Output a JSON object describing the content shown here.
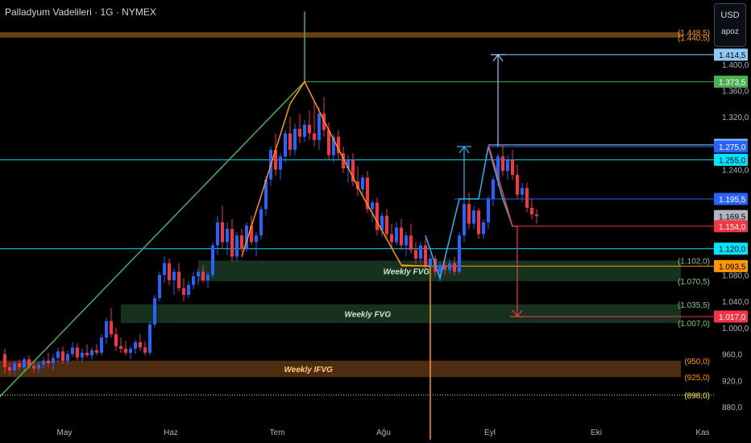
{
  "title": "Palladyum Vadelileri · 1G · NYMEX",
  "currency_selector": {
    "currency": "USD",
    "unit": "apoz"
  },
  "colors": {
    "background": "#000000",
    "up": "#2962ff",
    "down": "#f23645",
    "green_line": "#4caf50",
    "orange": "#ff9800",
    "cyan": "#00e5ff",
    "light_blue": "#90caf9",
    "yellow": "#ffeb3b",
    "fvg_fill": "#1b3a24",
    "ifvg_fill": "#5a3412",
    "axis_text": "#b2b5be"
  },
  "chart_data": {
    "type": "candlestick",
    "x_axis": {
      "labels": [
        "May",
        "Haz",
        "Tem",
        "Ağu",
        "Eyl",
        "Eki",
        "Kas"
      ],
      "bar_index": [
        4,
        26,
        48,
        70,
        92,
        114,
        136
      ]
    },
    "y_axis": {
      "range": [
        865,
        1480
      ],
      "tick_labels": [
        "1.400,0",
        "1.360,0",
        "1.320,0",
        "1.240,0",
        "1.080,0",
        "1.040,0",
        "1.000,0",
        "960,0",
        "920,0",
        "880,0"
      ],
      "tick_values": [
        1400,
        1360,
        1320,
        1240,
        1080,
        1040,
        1000,
        960,
        920,
        880
      ]
    },
    "price_tags": [
      {
        "value": 1414.5,
        "text": "1.414,5",
        "bg": "#90caf9",
        "fg": "#000000"
      },
      {
        "value": 1373.5,
        "text": "1.373,5",
        "bg": "#4caf50",
        "fg": "#ffffff"
      },
      {
        "value": 1277.5,
        "text": "1.277,5",
        "bg": "#90caf9",
        "fg": "#000000"
      },
      {
        "value": 1275.0,
        "text": "1.275,0",
        "bg": "#2962ff",
        "fg": "#ffffff"
      },
      {
        "value": 1255.0,
        "text": "1.255,0",
        "bg": "#00e5ff",
        "fg": "#000000"
      },
      {
        "value": 1195.5,
        "text": "1.195,5",
        "bg": "#2962ff",
        "fg": "#ffffff"
      },
      {
        "value": 1169.5,
        "text": "1.169,5",
        "bg": "#b2b5be",
        "fg": "#000000"
      },
      {
        "value": 1154.0,
        "text": "1.154,0",
        "bg": "#f23645",
        "fg": "#ffffff"
      },
      {
        "value": 1120.0,
        "text": "1.120,0",
        "bg": "#00e5ff",
        "fg": "#000000"
      },
      {
        "value": 1093.5,
        "text": "1.093,5",
        "bg": "#ff9800",
        "fg": "#000000"
      },
      {
        "value": 1017.0,
        "text": "1.017,0",
        "bg": "#f23645",
        "fg": "#ffffff"
      }
    ],
    "level_labels": [
      {
        "value": 1448.5,
        "text": "(1.448,5)",
        "color": "#ff9800"
      },
      {
        "value": 1440.5,
        "text": "(1.440,5)",
        "color": "#ff9800"
      },
      {
        "value": 1102.0,
        "text": "(1.102,0)",
        "color": "#81c784"
      },
      {
        "value": 1070.5,
        "text": "(1.070,5)",
        "color": "#81c784"
      },
      {
        "value": 1035.5,
        "text": "(1.035,5)",
        "color": "#81c784"
      },
      {
        "value": 1007.0,
        "text": "(1.007,0)",
        "color": "#81c784"
      },
      {
        "value": 950.0,
        "text": "(950,0)",
        "color": "#ff9800"
      },
      {
        "value": 925.0,
        "text": "(925,0)",
        "color": "#ff9800"
      },
      {
        "value": 898.0,
        "text": "(898,0)",
        "color": "#ffeb3b"
      }
    ],
    "zones": [
      {
        "label": "",
        "top": 1448.5,
        "bottom": 1440.5,
        "x_start": -2,
        "fill": "#7a4a1a",
        "label_color": ""
      },
      {
        "label": "Weekly FVG",
        "top": 1102.0,
        "bottom": 1070.5,
        "x_start": 40,
        "fill": "#1b3a24",
        "label_color": "#c8e6c9"
      },
      {
        "label": "Weekly FVG",
        "top": 1035.5,
        "bottom": 1007.0,
        "x_start": 24,
        "fill": "#1b3a24",
        "label_color": "#c8e6c9"
      },
      {
        "label": "Weekly IFVG",
        "top": 950.0,
        "bottom": 925.0,
        "x_start": -2,
        "fill": "#5a3412",
        "label_color": "#ffcc80"
      }
    ],
    "horizontal_lines": [
      {
        "value": 1255.0,
        "x_start": -2,
        "color": "#00e5ff"
      },
      {
        "value": 1120.0,
        "x_start": -2,
        "color": "#00e5ff"
      },
      {
        "value": 1373.5,
        "x_start": 62,
        "color": "#4caf50"
      },
      {
        "value": 1414.5,
        "x_start": 101,
        "color": "#90caf9"
      },
      {
        "value": 1277.5,
        "x_start": 100,
        "color": "#90caf9"
      },
      {
        "value": 1275.0,
        "x_start": 100,
        "color": "#2962ff"
      },
      {
        "value": 1195.5,
        "x_start": 93,
        "color": "#2962ff"
      },
      {
        "value": 1154.0,
        "x_start": 105,
        "color": "#f23645"
      },
      {
        "value": 1017.0,
        "x_start": 106,
        "color": "#f23645"
      },
      {
        "value": 1093.5,
        "x_start": 82,
        "color": "#ff9800"
      },
      {
        "value": 898.0,
        "x_start": -2,
        "color": "#ffeb3b",
        "dotted": true
      }
    ],
    "polylines": [
      {
        "color": "#4caf50",
        "points": [
          [
            -2,
            888
          ],
          [
            62,
            1373.5
          ]
        ]
      },
      {
        "color": "#4caf50",
        "points": [
          [
            62,
            1480
          ],
          [
            62,
            1373.5
          ]
        ]
      },
      {
        "color": "#ff9800",
        "points": [
          [
            49,
            1108
          ],
          [
            53,
            1200
          ],
          [
            59,
            1340
          ],
          [
            62,
            1373.5
          ],
          [
            67,
            1300
          ],
          [
            74,
            1200
          ],
          [
            82,
            1095
          ],
          [
            88,
            1093.5
          ]
        ]
      },
      {
        "color": "#ff9800",
        "points": [
          [
            88,
            1093.5
          ],
          [
            88,
            830
          ]
        ]
      },
      {
        "color": "#29b6f6",
        "points": [
          [
            87,
            1140
          ],
          [
            90,
            1075
          ],
          [
            94,
            1195.5
          ],
          [
            98,
            1195.5
          ],
          [
            100,
            1275
          ],
          [
            103,
            1195.5
          ],
          [
            105,
            1154
          ]
        ]
      },
      {
        "color": "#f23645",
        "points": [
          [
            100,
            1277.5
          ],
          [
            102,
            1230
          ],
          [
            105,
            1154
          ],
          [
            106,
            1154
          ]
        ]
      }
    ],
    "arrows": [
      {
        "color": "#29b6f6",
        "bar": 95,
        "from": 1195.5,
        "to": 1275.0
      },
      {
        "color": "#90caf9",
        "bar": 102,
        "from": 1275.0,
        "to": 1414.5
      },
      {
        "color": "#f23645",
        "bar": 106,
        "from": 1154.0,
        "to": 1017.0
      }
    ],
    "candles": [
      {
        "o": 960,
        "h": 968,
        "l": 930,
        "c": 940
      },
      {
        "o": 940,
        "h": 946,
        "l": 928,
        "c": 935
      },
      {
        "o": 935,
        "h": 950,
        "l": 928,
        "c": 946
      },
      {
        "o": 946,
        "h": 952,
        "l": 935,
        "c": 940
      },
      {
        "o": 940,
        "h": 955,
        "l": 935,
        "c": 952
      },
      {
        "o": 952,
        "h": 958,
        "l": 938,
        "c": 942
      },
      {
        "o": 942,
        "h": 950,
        "l": 932,
        "c": 938
      },
      {
        "o": 938,
        "h": 948,
        "l": 930,
        "c": 944
      },
      {
        "o": 944,
        "h": 955,
        "l": 938,
        "c": 950
      },
      {
        "o": 950,
        "h": 962,
        "l": 940,
        "c": 946
      },
      {
        "o": 946,
        "h": 960,
        "l": 936,
        "c": 954
      },
      {
        "o": 954,
        "h": 970,
        "l": 948,
        "c": 964
      },
      {
        "o": 964,
        "h": 972,
        "l": 945,
        "c": 950
      },
      {
        "o": 950,
        "h": 965,
        "l": 944,
        "c": 960
      },
      {
        "o": 960,
        "h": 978,
        "l": 955,
        "c": 970
      },
      {
        "o": 970,
        "h": 976,
        "l": 950,
        "c": 955
      },
      {
        "o": 955,
        "h": 968,
        "l": 948,
        "c": 962
      },
      {
        "o": 962,
        "h": 975,
        "l": 955,
        "c": 958
      },
      {
        "o": 958,
        "h": 970,
        "l": 952,
        "c": 966
      },
      {
        "o": 966,
        "h": 975,
        "l": 958,
        "c": 962
      },
      {
        "o": 962,
        "h": 990,
        "l": 958,
        "c": 985
      },
      {
        "o": 985,
        "h": 1015,
        "l": 975,
        "c": 1010
      },
      {
        "o": 1010,
        "h": 1030,
        "l": 985,
        "c": 990
      },
      {
        "o": 990,
        "h": 1000,
        "l": 965,
        "c": 972
      },
      {
        "o": 972,
        "h": 985,
        "l": 962,
        "c": 968
      },
      {
        "o": 968,
        "h": 980,
        "l": 958,
        "c": 962
      },
      {
        "o": 962,
        "h": 972,
        "l": 952,
        "c": 968
      },
      {
        "o": 968,
        "h": 982,
        "l": 960,
        "c": 978
      },
      {
        "o": 978,
        "h": 990,
        "l": 965,
        "c": 970
      },
      {
        "o": 970,
        "h": 980,
        "l": 958,
        "c": 962
      },
      {
        "o": 962,
        "h": 1010,
        "l": 958,
        "c": 1005
      },
      {
        "o": 1005,
        "h": 1050,
        "l": 1000,
        "c": 1045
      },
      {
        "o": 1045,
        "h": 1085,
        "l": 1040,
        "c": 1080
      },
      {
        "o": 1080,
        "h": 1108,
        "l": 1068,
        "c": 1098
      },
      {
        "o": 1098,
        "h": 1105,
        "l": 1065,
        "c": 1072
      },
      {
        "o": 1072,
        "h": 1090,
        "l": 1050,
        "c": 1085
      },
      {
        "o": 1085,
        "h": 1098,
        "l": 1055,
        "c": 1060
      },
      {
        "o": 1060,
        "h": 1075,
        "l": 1040,
        "c": 1050
      },
      {
        "o": 1050,
        "h": 1070,
        "l": 1045,
        "c": 1065
      },
      {
        "o": 1065,
        "h": 1085,
        "l": 1058,
        "c": 1078
      },
      {
        "o": 1078,
        "h": 1090,
        "l": 1065,
        "c": 1085
      },
      {
        "o": 1085,
        "h": 1095,
        "l": 1068,
        "c": 1072
      },
      {
        "o": 1072,
        "h": 1085,
        "l": 1060,
        "c": 1080
      },
      {
        "o": 1080,
        "h": 1130,
        "l": 1075,
        "c": 1125
      },
      {
        "o": 1125,
        "h": 1170,
        "l": 1110,
        "c": 1160
      },
      {
        "o": 1160,
        "h": 1185,
        "l": 1120,
        "c": 1130
      },
      {
        "o": 1130,
        "h": 1160,
        "l": 1110,
        "c": 1150
      },
      {
        "o": 1150,
        "h": 1165,
        "l": 1100,
        "c": 1108
      },
      {
        "o": 1108,
        "h": 1145,
        "l": 1100,
        "c": 1140
      },
      {
        "o": 1140,
        "h": 1150,
        "l": 1115,
        "c": 1120
      },
      {
        "o": 1120,
        "h": 1160,
        "l": 1115,
        "c": 1155
      },
      {
        "o": 1155,
        "h": 1170,
        "l": 1125,
        "c": 1130
      },
      {
        "o": 1130,
        "h": 1145,
        "l": 1108,
        "c": 1140
      },
      {
        "o": 1140,
        "h": 1185,
        "l": 1135,
        "c": 1180
      },
      {
        "o": 1180,
        "h": 1230,
        "l": 1170,
        "c": 1225
      },
      {
        "o": 1225,
        "h": 1275,
        "l": 1215,
        "c": 1270
      },
      {
        "o": 1270,
        "h": 1295,
        "l": 1230,
        "c": 1240
      },
      {
        "o": 1240,
        "h": 1265,
        "l": 1225,
        "c": 1260
      },
      {
        "o": 1260,
        "h": 1300,
        "l": 1250,
        "c": 1295
      },
      {
        "o": 1295,
        "h": 1320,
        "l": 1260,
        "c": 1270
      },
      {
        "o": 1270,
        "h": 1310,
        "l": 1262,
        "c": 1302
      },
      {
        "o": 1302,
        "h": 1325,
        "l": 1280,
        "c": 1290
      },
      {
        "o": 1290,
        "h": 1315,
        "l": 1282,
        "c": 1308
      },
      {
        "o": 1308,
        "h": 1330,
        "l": 1285,
        "c": 1295
      },
      {
        "o": 1295,
        "h": 1345,
        "l": 1275,
        "c": 1285
      },
      {
        "o": 1285,
        "h": 1335,
        "l": 1270,
        "c": 1325
      },
      {
        "o": 1325,
        "h": 1350,
        "l": 1290,
        "c": 1300
      },
      {
        "o": 1300,
        "h": 1312,
        "l": 1255,
        "c": 1262
      },
      {
        "o": 1262,
        "h": 1295,
        "l": 1250,
        "c": 1290
      },
      {
        "o": 1290,
        "h": 1300,
        "l": 1255,
        "c": 1265
      },
      {
        "o": 1265,
        "h": 1275,
        "l": 1235,
        "c": 1242
      },
      {
        "o": 1242,
        "h": 1262,
        "l": 1220,
        "c": 1255
      },
      {
        "o": 1255,
        "h": 1265,
        "l": 1215,
        "c": 1222
      },
      {
        "o": 1222,
        "h": 1245,
        "l": 1200,
        "c": 1210
      },
      {
        "o": 1210,
        "h": 1232,
        "l": 1198,
        "c": 1228
      },
      {
        "o": 1228,
        "h": 1238,
        "l": 1175,
        "c": 1180
      },
      {
        "o": 1180,
        "h": 1195,
        "l": 1160,
        "c": 1190
      },
      {
        "o": 1190,
        "h": 1198,
        "l": 1140,
        "c": 1148
      },
      {
        "o": 1148,
        "h": 1175,
        "l": 1138,
        "c": 1170
      },
      {
        "o": 1170,
        "h": 1180,
        "l": 1135,
        "c": 1142
      },
      {
        "o": 1142,
        "h": 1158,
        "l": 1120,
        "c": 1130
      },
      {
        "o": 1130,
        "h": 1160,
        "l": 1125,
        "c": 1152
      },
      {
        "o": 1152,
        "h": 1165,
        "l": 1118,
        "c": 1125
      },
      {
        "o": 1125,
        "h": 1145,
        "l": 1108,
        "c": 1140
      },
      {
        "o": 1140,
        "h": 1158,
        "l": 1112,
        "c": 1118
      },
      {
        "o": 1118,
        "h": 1130,
        "l": 1098,
        "c": 1105
      },
      {
        "o": 1105,
        "h": 1130,
        "l": 1098,
        "c": 1125
      },
      {
        "o": 1125,
        "h": 1135,
        "l": 1088,
        "c": 1092
      },
      {
        "o": 1092,
        "h": 1112,
        "l": 1080,
        "c": 1105
      },
      {
        "o": 1105,
        "h": 1110,
        "l": 1078,
        "c": 1085
      },
      {
        "o": 1085,
        "h": 1100,
        "l": 1070,
        "c": 1095
      },
      {
        "o": 1095,
        "h": 1102,
        "l": 1080,
        "c": 1088
      },
      {
        "o": 1088,
        "h": 1105,
        "l": 1082,
        "c": 1098
      },
      {
        "o": 1098,
        "h": 1108,
        "l": 1080,
        "c": 1085
      },
      {
        "o": 1085,
        "h": 1145,
        "l": 1082,
        "c": 1140
      },
      {
        "o": 1140,
        "h": 1195,
        "l": 1130,
        "c": 1188
      },
      {
        "o": 1188,
        "h": 1205,
        "l": 1150,
        "c": 1158
      },
      {
        "o": 1158,
        "h": 1185,
        "l": 1150,
        "c": 1178
      },
      {
        "o": 1178,
        "h": 1182,
        "l": 1135,
        "c": 1142
      },
      {
        "o": 1142,
        "h": 1165,
        "l": 1135,
        "c": 1160
      },
      {
        "o": 1160,
        "h": 1200,
        "l": 1150,
        "c": 1195
      },
      {
        "o": 1195,
        "h": 1230,
        "l": 1185,
        "c": 1225
      },
      {
        "o": 1225,
        "h": 1265,
        "l": 1215,
        "c": 1260
      },
      {
        "o": 1260,
        "h": 1278,
        "l": 1230,
        "c": 1238
      },
      {
        "o": 1238,
        "h": 1262,
        "l": 1225,
        "c": 1255
      },
      {
        "o": 1255,
        "h": 1270,
        "l": 1225,
        "c": 1232
      },
      {
        "o": 1232,
        "h": 1248,
        "l": 1195,
        "c": 1202
      },
      {
        "o": 1202,
        "h": 1220,
        "l": 1190,
        "c": 1212
      },
      {
        "o": 1212,
        "h": 1220,
        "l": 1175,
        "c": 1182
      },
      {
        "o": 1182,
        "h": 1195,
        "l": 1165,
        "c": 1172
      },
      {
        "o": 1172,
        "h": 1180,
        "l": 1158,
        "c": 1169.5
      }
    ]
  }
}
